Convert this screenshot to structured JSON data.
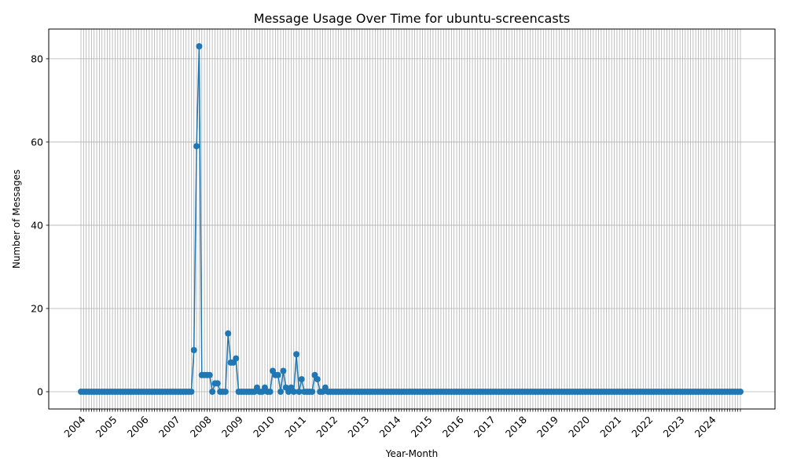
{
  "chart_data": {
    "type": "line",
    "title": "Message Usage Over Time for ubuntu-screencasts",
    "xlabel": "Year-Month",
    "ylabel": "Number of Messages",
    "x_start": "2004-01",
    "x_end": "2024-12",
    "x_tick_labels": [
      "2004",
      "2005",
      "2006",
      "2007",
      "2008",
      "2009",
      "2010",
      "2011",
      "2012",
      "2013",
      "2014",
      "2015",
      "2016",
      "2017",
      "2018",
      "2019",
      "2020",
      "2021",
      "2022",
      "2023",
      "2024"
    ],
    "ylim": [
      -4.15,
      87.15
    ],
    "yticks": [
      0,
      20,
      40,
      60,
      80
    ],
    "grid": true,
    "legend": "none",
    "colors": {
      "line": "#1f77b4",
      "grid": "#b0b0b0"
    },
    "series": [
      {
        "values_nonzero": {
          "2007-08": 10,
          "2007-09": 59,
          "2007-10": 83,
          "2007-11": 4,
          "2007-12": 4,
          "2008-01": 4,
          "2008-02": 4,
          "2008-04": 2,
          "2008-05": 2,
          "2008-09": 14,
          "2008-10": 7,
          "2008-11": 7,
          "2008-12": 8,
          "2009-08": 1,
          "2009-11": 1,
          "2010-02": 5,
          "2010-03": 4,
          "2010-04": 4,
          "2010-06": 5,
          "2010-07": 1,
          "2010-09": 1,
          "2010-11": 9,
          "2011-01": 3,
          "2011-06": 4,
          "2011-07": 3,
          "2011-10": 1
        },
        "default_value": 0
      }
    ]
  }
}
